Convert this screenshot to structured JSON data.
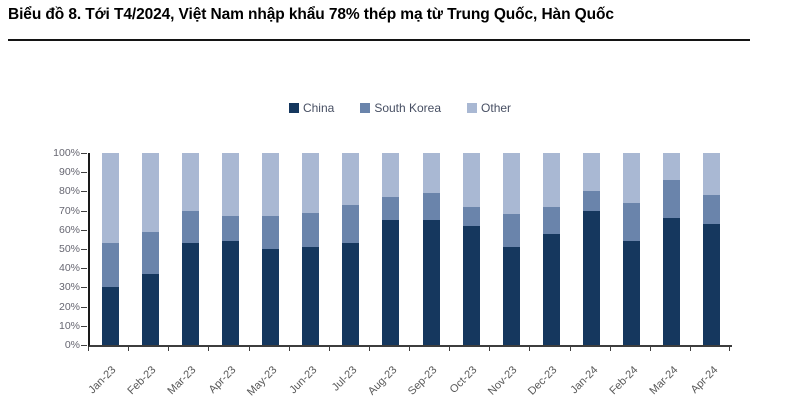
{
  "page": {
    "title": "Biểu đồ 8. Tới T4/2024, Việt Nam nhập khẩu 78% thép mạ từ Trung Quốc, Hàn Quốc"
  },
  "chart_data": {
    "type": "bar",
    "variant": "stacked-100-percent-column",
    "title": "Biểu đồ 8. Tới T4/2024, Việt Nam nhập khẩu 78% thép mạ từ Trung Quốc, Hàn Quốc",
    "categories": [
      "Jan-23",
      "Feb-23",
      "Mar-23",
      "Apr-23",
      "May-23",
      "Jun-23",
      "Jul-23",
      "Aug-23",
      "Sep-23",
      "Oct-23",
      "Nov-23",
      "Dec-23",
      "Jan-24",
      "Feb-24",
      "Mar-24",
      "Apr-24"
    ],
    "series": [
      {
        "name": "China",
        "color": "#15375e",
        "values": [
          30,
          37,
          53,
          54,
          50,
          51,
          53,
          65,
          65,
          62,
          51,
          58,
          70,
          54,
          66,
          63
        ]
      },
      {
        "name": "South Korea",
        "color": "#6a84ab",
        "values": [
          23,
          22,
          17,
          13,
          17,
          18,
          20,
          12,
          14,
          10,
          17,
          14,
          10,
          20,
          20,
          15
        ]
      },
      {
        "name": "Other",
        "color": "#a9b8d3",
        "values": [
          47,
          41,
          30,
          33,
          33,
          31,
          27,
          23,
          21,
          28,
          32,
          28,
          20,
          26,
          14,
          22
        ]
      }
    ],
    "xlabel": "",
    "ylabel": "",
    "ylim": [
      0,
      100
    ],
    "yticks": [
      "100%",
      "90%",
      "80%",
      "70%",
      "60%",
      "50%",
      "40%",
      "30%",
      "20%",
      "10%",
      "0%"
    ],
    "legend_position": "top-center",
    "grid": false,
    "colors": {
      "axis_line": "#1a1a1a",
      "tick": "#404040",
      "y_label_text": "#666671",
      "x_label_text": "#595959",
      "legend_text": "#474f63",
      "title_text": "#000000"
    }
  }
}
